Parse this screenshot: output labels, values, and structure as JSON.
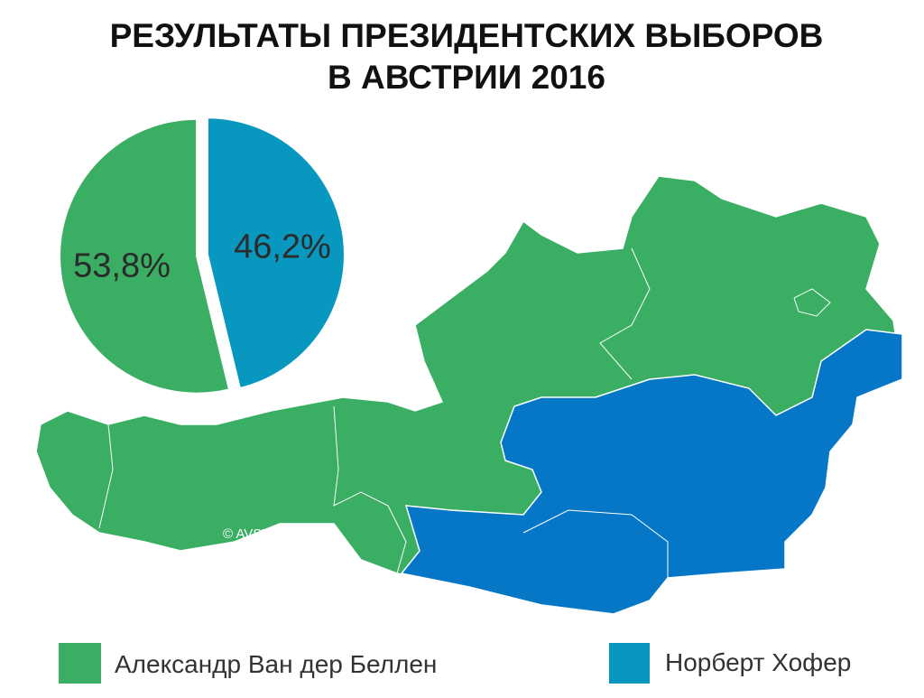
{
  "chart_data": {
    "type": "pie",
    "title": [
      "РЕЗУЛЬТАТЫ ПРЕЗИДЕНТСКИХ ВЫБОРОВ",
      "В АВСТРИИ 2016"
    ],
    "categories": [
      "Александр Ван дер Беллен",
      "Норберт Хофер"
    ],
    "values": [
      53.8,
      46.2
    ],
    "value_labels": [
      "53,8%",
      "46,2%"
    ],
    "colors": [
      "#3aae62",
      "#0897be"
    ],
    "annotations": [
      "© AVSTRIJA.AT"
    ]
  }
}
